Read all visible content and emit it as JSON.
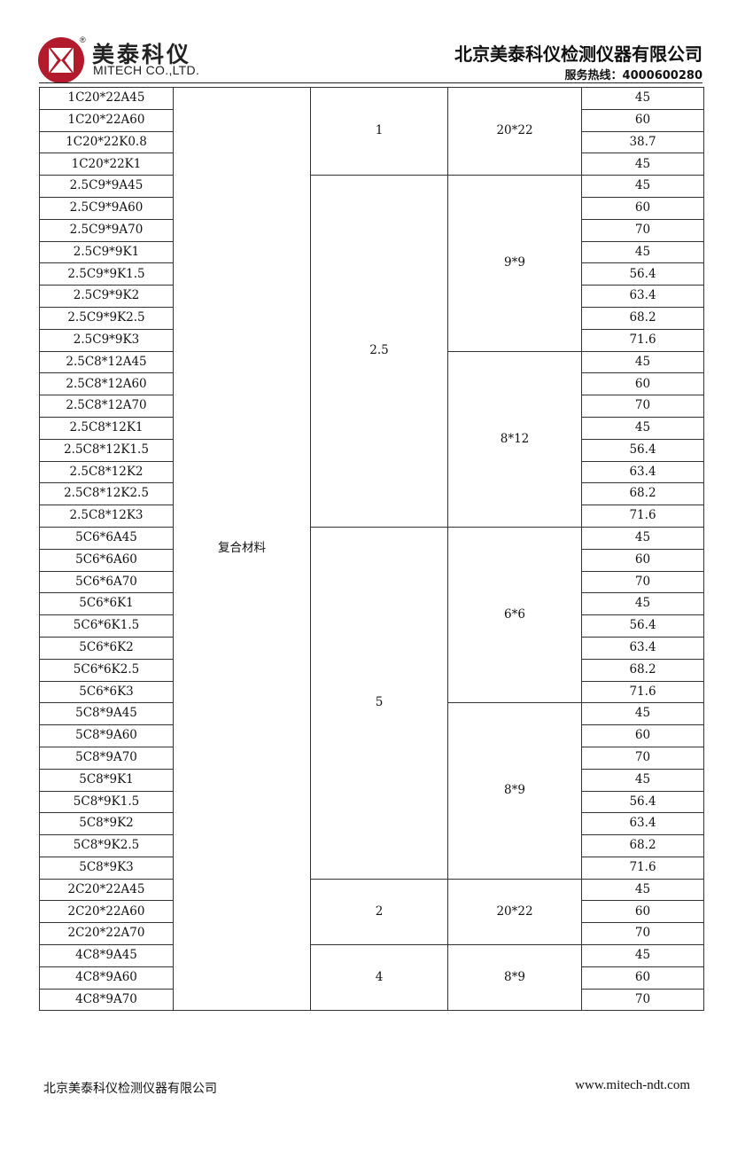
{
  "header": {
    "brand_cn": "美泰科仪",
    "brand_en": "MITECH CO.,LTD.",
    "registered_mark": "®",
    "company": "北京美泰科仪检测仪器有限公司",
    "hotline": "服务热线：4000600280",
    "brand_color": "#b31b2c"
  },
  "table": {
    "material": "复合材料",
    "groups": [
      {
        "thickness": "1",
        "subgroups": [
          {
            "size": "20*22",
            "rows": [
              [
                "1C20*22A45",
                "45"
              ],
              [
                "1C20*22A60",
                "60"
              ],
              [
                "1C20*22K0.8",
                "38.7"
              ],
              [
                "1C20*22K1",
                "45"
              ]
            ]
          }
        ]
      },
      {
        "thickness": "2.5",
        "subgroups": [
          {
            "size": "9*9",
            "rows": [
              [
                "2.5C9*9A45",
                "45"
              ],
              [
                "2.5C9*9A60",
                "60"
              ],
              [
                "2.5C9*9A70",
                "70"
              ],
              [
                "2.5C9*9K1",
                "45"
              ],
              [
                "2.5C9*9K1.5",
                "56.4"
              ],
              [
                "2.5C9*9K2",
                "63.4"
              ],
              [
                "2.5C9*9K2.5",
                "68.2"
              ],
              [
                "2.5C9*9K3",
                "71.6"
              ]
            ]
          },
          {
            "size": "8*12",
            "rows": [
              [
                "2.5C8*12A45",
                "45"
              ],
              [
                "2.5C8*12A60",
                "60"
              ],
              [
                "2.5C8*12A70",
                "70"
              ],
              [
                "2.5C8*12K1",
                "45"
              ],
              [
                "2.5C8*12K1.5",
                "56.4"
              ],
              [
                "2.5C8*12K2",
                "63.4"
              ],
              [
                "2.5C8*12K2.5",
                "68.2"
              ],
              [
                "2.5C8*12K3",
                "71.6"
              ]
            ]
          }
        ]
      },
      {
        "thickness": "5",
        "subgroups": [
          {
            "size": "6*6",
            "rows": [
              [
                "5C6*6A45",
                "45"
              ],
              [
                "5C6*6A60",
                "60"
              ],
              [
                "5C6*6A70",
                "70"
              ],
              [
                "5C6*6K1",
                "45"
              ],
              [
                "5C6*6K1.5",
                "56.4"
              ],
              [
                "5C6*6K2",
                "63.4"
              ],
              [
                "5C6*6K2.5",
                "68.2"
              ],
              [
                "5C6*6K3",
                "71.6"
              ]
            ]
          },
          {
            "size": "8*9",
            "rows": [
              [
                "5C8*9A45",
                "45"
              ],
              [
                "5C8*9A60",
                "60"
              ],
              [
                "5C8*9A70",
                "70"
              ],
              [
                "5C8*9K1",
                "45"
              ],
              [
                "5C8*9K1.5",
                "56.4"
              ],
              [
                "5C8*9K2",
                "63.4"
              ],
              [
                "5C8*9K2.5",
                "68.2"
              ],
              [
                "5C8*9K3",
                "71.6"
              ]
            ]
          }
        ]
      },
      {
        "thickness": "2",
        "subgroups": [
          {
            "size": "20*22",
            "rows": [
              [
                "2C20*22A45",
                "45"
              ],
              [
                "2C20*22A60",
                "60"
              ],
              [
                "2C20*22A70",
                "70"
              ]
            ]
          }
        ]
      },
      {
        "thickness": "4",
        "subgroups": [
          {
            "size": "8*9",
            "rows": [
              [
                "4C8*9A45",
                "45"
              ],
              [
                "4C8*9A60",
                "60"
              ],
              [
                "4C8*9A70",
                "70"
              ]
            ]
          }
        ]
      }
    ]
  },
  "footer": {
    "company": "北京美泰科仪检测仪器有限公司",
    "website": "www.mitech-ndt.com"
  }
}
